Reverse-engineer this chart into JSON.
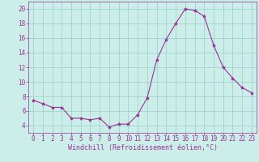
{
  "x": [
    0,
    1,
    2,
    3,
    4,
    5,
    6,
    7,
    8,
    9,
    10,
    11,
    12,
    13,
    14,
    15,
    16,
    17,
    18,
    19,
    20,
    21,
    22,
    23
  ],
  "y": [
    7.5,
    7.0,
    6.5,
    6.5,
    5.0,
    5.0,
    4.8,
    5.0,
    3.8,
    4.2,
    4.2,
    5.5,
    7.8,
    13.0,
    15.8,
    18.0,
    20.0,
    19.8,
    19.0,
    15.0,
    12.0,
    10.5,
    9.2,
    8.5
  ],
  "line_color": "#993399",
  "marker": "*",
  "marker_size": 3,
  "bg_color": "#cceee8",
  "grid_color": "#99cccc",
  "xlabel": "Windchill (Refroidissement éolien,°C)",
  "xlabel_color": "#993399",
  "tick_color": "#993399",
  "ylim": [
    3,
    21
  ],
  "xlim": [
    -0.5,
    23.5
  ],
  "yticks": [
    4,
    6,
    8,
    10,
    12,
    14,
    16,
    18,
    20
  ],
  "xticks": [
    0,
    1,
    2,
    3,
    4,
    5,
    6,
    7,
    8,
    9,
    10,
    11,
    12,
    13,
    14,
    15,
    16,
    17,
    18,
    19,
    20,
    21,
    22,
    23
  ],
  "tick_fontsize": 5.5,
  "xlabel_fontsize": 6.0,
  "linewidth": 0.8
}
